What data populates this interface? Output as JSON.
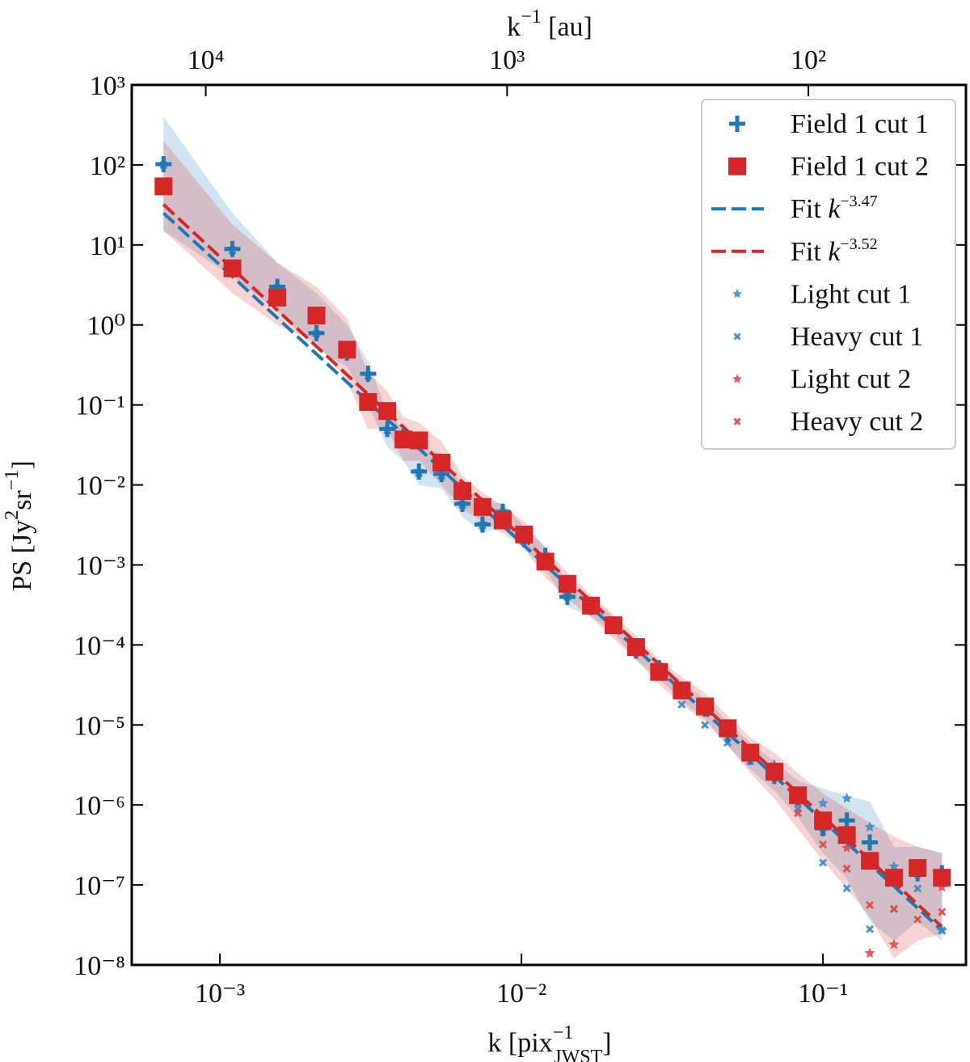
{
  "chart_data": {
    "type": "scatter",
    "xscale": "log",
    "yscale": "log",
    "xlabel": [
      "k [pix",
      "−1",
      "JWST",
      "]"
    ],
    "ylabel": [
      "PS [Jy",
      "2",
      "sr",
      "−1",
      "]"
    ],
    "x2label": [
      "k",
      "−1",
      " [au]"
    ],
    "xlim": [
      0.00051,
      0.298
    ],
    "ylim": [
      1e-08,
      1000
    ],
    "x2lim": [
      17600,
      30
    ],
    "xticks": [
      {
        "value": 0.001,
        "label": "10⁻³"
      },
      {
        "value": 0.01,
        "label": "10⁻²"
      },
      {
        "value": 0.1,
        "label": "10⁻¹"
      }
    ],
    "x2ticks": [
      {
        "value": 10000,
        "label": "10⁴"
      },
      {
        "value": 1000,
        "label": "10³"
      },
      {
        "value": 100,
        "label": "10²"
      }
    ],
    "yticks": [
      {
        "value": 1000,
        "label": "10³"
      },
      {
        "value": 100,
        "label": "10²"
      },
      {
        "value": 10,
        "label": "10¹"
      },
      {
        "value": 1,
        "label": "10⁰"
      },
      {
        "value": 0.1,
        "label": "10⁻¹"
      },
      {
        "value": 0.01,
        "label": "10⁻²"
      },
      {
        "value": 0.001,
        "label": "10⁻³"
      },
      {
        "value": 0.0001,
        "label": "10⁻⁴"
      },
      {
        "value": 1e-05,
        "label": "10⁻⁵"
      },
      {
        "value": 1e-06,
        "label": "10⁻⁶"
      },
      {
        "value": 1e-07,
        "label": "10⁻⁷"
      },
      {
        "value": 1e-08,
        "label": "10⁻⁸"
      }
    ],
    "legend": "upper right",
    "x": [
      0.00065,
      0.0011,
      0.00155,
      0.00209,
      0.00264,
      0.0031,
      0.00359,
      0.00406,
      0.00457,
      0.00543,
      0.00637,
      0.00743,
      0.00867,
      0.0102,
      0.012,
      0.0142,
      0.017,
      0.0202,
      0.024,
      0.0286,
      0.034,
      0.0406,
      0.0483,
      0.0574,
      0.069,
      0.0826,
      0.1,
      0.12,
      0.143,
      0.172,
      0.206,
      0.248
    ],
    "series": [
      {
        "name": "Field 1 cut 1",
        "color": "#1f77b4",
        "marker": "plus",
        "values": [
          102,
          8.9,
          3.0,
          0.79,
          0.45,
          0.245,
          0.05,
          0.04,
          0.0147,
          0.0137,
          0.0058,
          0.0032,
          0.0046,
          0.0021,
          0.0013,
          0.0004,
          0.0003,
          0.00018,
          8.5e-05,
          5.1e-05,
          2.7e-05,
          1.6e-05,
          7.5e-06,
          4e-06,
          2.3e-06,
          1.23e-06,
          5.1e-07,
          6.4e-07,
          3.4e-07,
          1.23e-07,
          1.4e-07,
          1.4e-07
        ],
        "upper": [
          400,
          25,
          6,
          2.5,
          1.0,
          0.35,
          0.08,
          0.05,
          0.03,
          0.025,
          0.01,
          0.006,
          0.006,
          0.003,
          0.0017,
          0.0006,
          0.0004,
          0.00022,
          0.00011,
          6e-05,
          3.5e-05,
          2.1e-05,
          1.1e-05,
          6e-06,
          3.5e-06,
          2e-06,
          1.6e-06,
          1.3e-06,
          1.1e-06,
          3e-07,
          3e-07,
          2.5e-07
        ],
        "lower": [
          15,
          4,
          1.5,
          0.5,
          0.3,
          0.1,
          0.03,
          0.02,
          0.01,
          0.009,
          0.004,
          0.0025,
          0.003,
          0.0016,
          0.0009,
          0.0003,
          0.00023,
          0.00014,
          6.5e-05,
          3.8e-05,
          2e-05,
          1.2e-05,
          5.5e-06,
          2.8e-06,
          1.5e-06,
          7e-07,
          2.5e-07,
          1.2e-07,
          3.5e-08,
          2e-08,
          3.5e-08,
          2e-08
        ]
      },
      {
        "name": "Field 1 cut 2",
        "color": "#d62728",
        "marker": "square",
        "values": [
          54,
          5.1,
          2.2,
          1.31,
          0.49,
          0.109,
          0.084,
          0.037,
          0.036,
          0.019,
          0.0084,
          0.0053,
          0.0036,
          0.0024,
          0.0011,
          0.00058,
          0.00031,
          0.000176,
          9.4e-05,
          4.6e-05,
          2.7e-05,
          1.7e-05,
          9.1e-06,
          4.5e-06,
          2.6e-06,
          1.32e-06,
          6.4e-07,
          4.2e-07,
          2e-07,
          1.23e-07,
          1.63e-07,
          1.23e-07
        ],
        "upper": [
          200,
          18,
          6,
          3,
          1.2,
          0.25,
          0.15,
          0.07,
          0.06,
          0.035,
          0.013,
          0.008,
          0.0055,
          0.0035,
          0.0016,
          0.0008,
          0.00042,
          0.00024,
          0.00013,
          6.5e-05,
          4e-05,
          2.5e-05,
          1.3e-05,
          7e-06,
          4.5e-06,
          2.5e-06,
          1.4e-06,
          9e-07,
          6e-07,
          4e-07,
          3e-07,
          2.5e-07
        ],
        "lower": [
          15,
          2.5,
          1.0,
          0.6,
          0.2,
          0.05,
          0.05,
          0.02,
          0.02,
          0.01,
          0.005,
          0.0035,
          0.0025,
          0.0016,
          0.0007,
          0.00038,
          0.00022,
          0.00012,
          6.5e-05,
          3.2e-05,
          1.8e-05,
          1.1e-05,
          5.5e-06,
          2.5e-06,
          1.2e-06,
          5e-07,
          2e-07,
          9e-08,
          4e-08,
          1.2e-08,
          2e-08,
          2.5e-08
        ]
      },
      {
        "name": [
          "Fit ",
          "k",
          "−3.47"
        ],
        "type": "line",
        "dash": true,
        "color": "#1f77b4",
        "x": [
          0.00065,
          0.248
        ],
        "values": [
          25,
          2.7e-08
        ]
      },
      {
        "name": [
          "Fit ",
          "k",
          "−3.52"
        ],
        "type": "line",
        "dash": true,
        "color": "#d62728",
        "x": [
          0.00065,
          0.248
        ],
        "values": [
          32,
          3e-08
        ]
      },
      {
        "name": "Light cut 1",
        "color": "#3d8ac6",
        "marker": "star",
        "values": [
          100,
          9,
          3.0,
          0.8,
          0.47,
          0.24,
          0.05,
          0.04,
          0.015,
          0.014,
          0.006,
          0.0033,
          0.0046,
          0.0021,
          0.0013,
          0.00042,
          0.00031,
          0.00018,
          8.6e-05,
          5.6e-05,
          2.8e-05,
          1.6e-05,
          7.8e-06,
          4.1e-06,
          3.2e-06,
          1.4e-06,
          1.05e-06,
          1.21e-06,
          5.3e-07,
          1.7e-07,
          1.37e-07,
          2.7e-08
        ]
      },
      {
        "name": "Heavy cut 1",
        "color": "#3d8ac6",
        "marker": "x",
        "values": [
          100,
          8.5,
          2.9,
          0.78,
          0.45,
          0.23,
          0.048,
          0.038,
          0.014,
          0.013,
          0.0056,
          0.0031,
          0.0045,
          0.002,
          0.0012,
          0.0004,
          0.00029,
          0.00017,
          8e-05,
          4.5e-05,
          1.8e-05,
          1e-05,
          6e-06,
          3.5e-06,
          2.9e-06,
          8.9e-07,
          1.9e-07,
          9.1e-08,
          2.8e-08,
          5e-08,
          9e-08,
          2.7e-08
        ]
      },
      {
        "name": "Light cut 2",
        "color": "#e04a4b",
        "marker": "star",
        "values": [
          54,
          5.1,
          2.2,
          1.31,
          0.49,
          0.109,
          0.084,
          0.037,
          0.036,
          0.019,
          0.0084,
          0.0053,
          0.0036,
          0.0024,
          0.0011,
          0.00058,
          0.00031,
          0.000176,
          9.4e-05,
          4.6e-05,
          2.7e-05,
          1.7e-05,
          9.1e-06,
          4.5e-06,
          2.6e-06,
          1.1e-06,
          4.7e-07,
          2.9e-07,
          1.4e-08,
          1.8e-08,
          1.7e-07,
          9.4e-08
        ]
      },
      {
        "name": "Heavy cut 2",
        "color": "#e04a4b",
        "marker": "x",
        "values": [
          54,
          5,
          2.1,
          1.3,
          0.48,
          0.105,
          0.08,
          0.036,
          0.035,
          0.018,
          0.008,
          0.0051,
          0.0035,
          0.0023,
          0.001,
          0.00055,
          0.0003,
          0.00017,
          9e-05,
          4.4e-05,
          2.6e-05,
          1.6e-05,
          8.5e-06,
          4e-06,
          2.2e-06,
          7.9e-07,
          3.2e-07,
          1.6e-07,
          5.6e-08,
          5e-08,
          3.7e-08,
          4.6e-08
        ]
      }
    ]
  }
}
